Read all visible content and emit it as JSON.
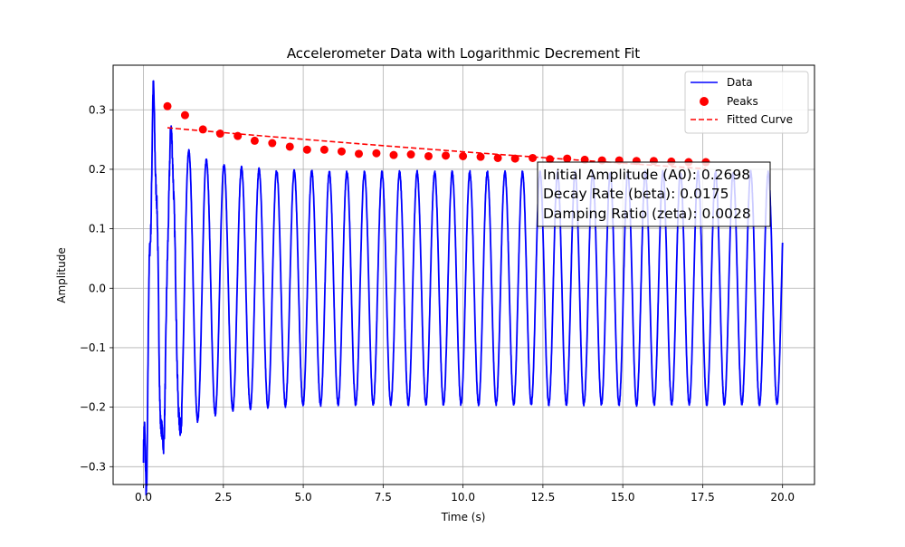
{
  "chart_data": {
    "type": "line",
    "title": "Accelerometer Data with Logarithmic Decrement Fit",
    "xlabel": "Time (s)",
    "ylabel": "Amplitude",
    "xlim": [
      -0.95,
      21.0
    ],
    "ylim": [
      -0.33,
      0.375
    ],
    "grid": true,
    "legend_position": "top-right",
    "x_ticks": [
      0.0,
      2.5,
      5.0,
      7.5,
      10.0,
      12.5,
      15.0,
      17.5,
      20.0
    ],
    "x_tick_labels": [
      "0.0",
      "2.5",
      "5.0",
      "7.5",
      "10.0",
      "12.5",
      "15.0",
      "17.5",
      "20.0"
    ],
    "y_ticks": [
      -0.3,
      -0.2,
      -0.1,
      0.0,
      0.1,
      0.2,
      0.3
    ],
    "y_tick_labels": [
      "−0.3",
      "−0.2",
      "−0.1",
      "0.0",
      "0.1",
      "0.2",
      "0.3"
    ],
    "series": [
      {
        "name": "Data",
        "kind": "line",
        "color": "#0000ff",
        "description_values": {
          "duration_s": 20.0,
          "frequency_hz": 1.82,
          "envelope_start": 0.34,
          "envelope_end": 0.19
        }
      },
      {
        "name": "Peaks",
        "kind": "scatter",
        "color": "#ff0000",
        "x": [
          0.75,
          1.3,
          1.86,
          2.4,
          2.95,
          3.48,
          4.03,
          4.58,
          5.12,
          5.66,
          6.2,
          6.74,
          7.29,
          7.83,
          8.37,
          8.92,
          9.46,
          10.0,
          10.55,
          11.09,
          11.63,
          12.18,
          12.72,
          13.26,
          13.81,
          14.35,
          14.89,
          15.43,
          15.97,
          16.52,
          17.06,
          17.6
        ],
        "y": [
          0.306,
          0.291,
          0.267,
          0.26,
          0.256,
          0.248,
          0.244,
          0.238,
          0.233,
          0.233,
          0.23,
          0.226,
          0.227,
          0.224,
          0.225,
          0.222,
          0.223,
          0.222,
          0.221,
          0.219,
          0.218,
          0.219,
          0.217,
          0.218,
          0.216,
          0.215,
          0.215,
          0.214,
          0.214,
          0.213,
          0.212,
          0.212
        ]
      },
      {
        "name": "Fitted Curve",
        "kind": "line",
        "style": "dashed",
        "color": "#ff0000",
        "x_range": [
          0.75,
          17.6
        ],
        "A0": 0.2698,
        "beta": 0.0175
      }
    ],
    "annotation": {
      "lines": [
        "Initial Amplitude (A0): 0.2698",
        "Decay Rate (beta): 0.0175",
        "Damping Ratio (zeta): 0.0028"
      ]
    }
  }
}
